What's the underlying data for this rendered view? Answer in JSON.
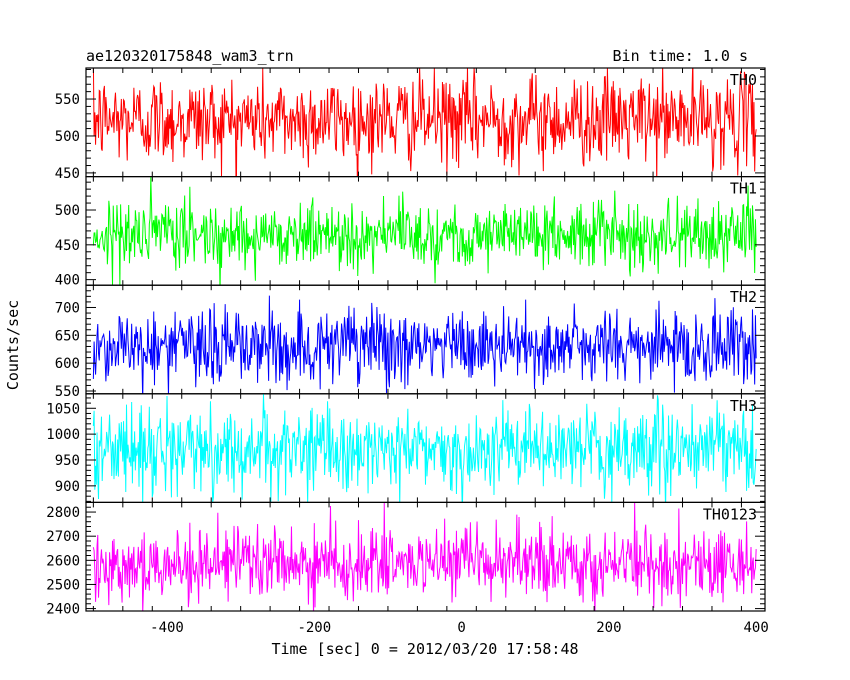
{
  "chart_data": {
    "type": "line",
    "title": "ae120320175848_wam3_trn",
    "subtitle": "Bin time: 1.0 s",
    "xlabel": "Time [sec] 0 = 2012/03/20 17:58:48",
    "ylabel": "Counts/sec",
    "xlim": [
      -510,
      412
    ],
    "x_ticks": [
      -400,
      -200,
      0,
      200,
      400
    ],
    "x_start": -500,
    "x_end": 400,
    "x_step": 1,
    "panels": [
      {
        "name": "TH0",
        "color": "#ff0000",
        "mean": 522,
        "sd": 30,
        "ylim": [
          445,
          592
        ],
        "y_ticks": [
          450,
          500,
          550
        ]
      },
      {
        "name": "TH1",
        "color": "#00ff00",
        "mean": 465,
        "sd": 24,
        "ylim": [
          392,
          548
        ],
        "y_ticks": [
          400,
          450,
          500
        ]
      },
      {
        "name": "TH2",
        "color": "#0000ff",
        "mean": 630,
        "sd": 35,
        "ylim": [
          545,
          740
        ],
        "y_ticks": [
          550,
          600,
          650,
          700
        ]
      },
      {
        "name": "TH3",
        "color": "#00ffff",
        "mean": 970,
        "sd": 40,
        "ylim": [
          868,
          1078
        ],
        "y_ticks": [
          900,
          950,
          1000,
          1050
        ]
      },
      {
        "name": "TH0123",
        "color": "#ff00ff",
        "mean": 2585,
        "sd": 75,
        "ylim": [
          2390,
          2840
        ],
        "y_ticks": [
          2400,
          2500,
          2600,
          2700,
          2800
        ]
      }
    ]
  }
}
